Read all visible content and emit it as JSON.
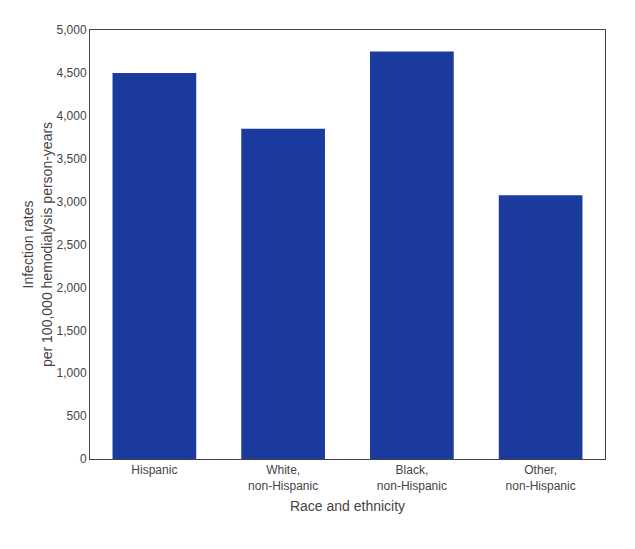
{
  "chart_data": {
    "type": "bar",
    "categories": [
      "Hispanic",
      "White,\nnon-Hispanic",
      "Black,\nnon-Hispanic",
      "Other,\nnon-Hispanic"
    ],
    "values": [
      4500,
      3850,
      4750,
      3075
    ],
    "color": "#1a3a9e",
    "xlabel": "Race and ethnicity",
    "ylabel": "Infection rates\nper 100,000 hemodialysis person-years",
    "ylim": [
      0,
      5000
    ],
    "yticks": [
      0,
      500,
      {
        "value": 1000,
        "label": "1,000"
      },
      {
        "value": 1500,
        "label": "1,500"
      },
      {
        "value": 2000,
        "label": "2,000"
      },
      {
        "value": 2500,
        "label": "2,500"
      },
      {
        "value": 3000,
        "label": "3,000"
      },
      {
        "value": 3500,
        "label": "3,500"
      },
      {
        "value": 4000,
        "label": "4,000"
      },
      {
        "value": 4500,
        "label": "4,500"
      },
      {
        "value": 5000,
        "label": "5,000"
      }
    ],
    "grid": false
  }
}
